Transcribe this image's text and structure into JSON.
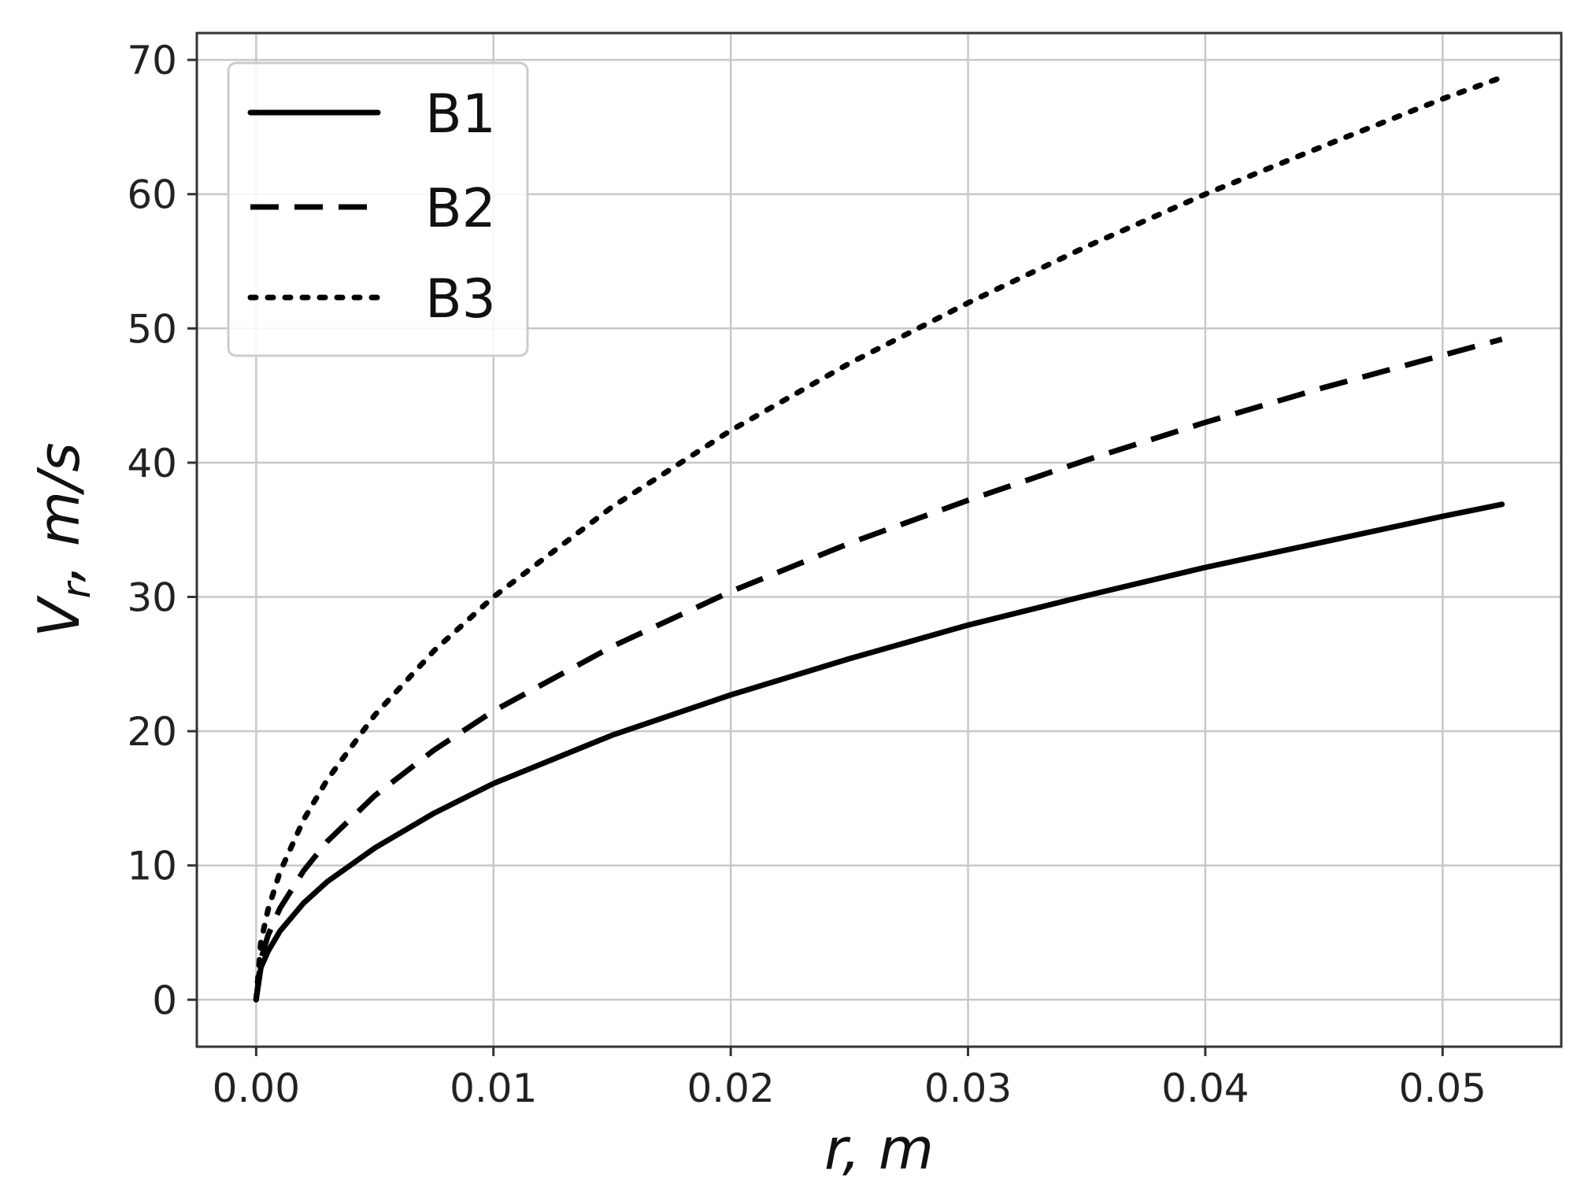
{
  "chart_data": {
    "type": "line",
    "title": "",
    "xlabel": "r, m",
    "ylabel_main": "V",
    "ylabel_sub": "r",
    "ylabel_rest": ", m/s",
    "xlim": [
      -0.0025,
      0.055
    ],
    "ylim": [
      -3.5,
      72
    ],
    "xticks": [
      0.0,
      0.01,
      0.02,
      0.03,
      0.04,
      0.05
    ],
    "xtick_labels": [
      "0.00",
      "0.01",
      "0.02",
      "0.03",
      "0.04",
      "0.05"
    ],
    "yticks": [
      0,
      10,
      20,
      30,
      40,
      50,
      60,
      70
    ],
    "ytick_labels": [
      "0",
      "10",
      "20",
      "30",
      "40",
      "50",
      "60",
      "70"
    ],
    "grid": true,
    "legend_position": "top-left",
    "series": [
      {
        "name": "B1",
        "style": "solid",
        "color": "#000000",
        "x": [
          0.0,
          0.0002,
          0.0005,
          0.001,
          0.002,
          0.003,
          0.005,
          0.0075,
          0.01,
          0.015,
          0.02,
          0.025,
          0.03,
          0.035,
          0.04,
          0.045,
          0.05,
          0.0525
        ],
        "y": [
          0.0,
          2.4,
          3.6,
          5.1,
          7.2,
          8.8,
          11.3,
          13.9,
          16.1,
          19.7,
          22.7,
          25.4,
          27.9,
          30.1,
          32.2,
          34.1,
          36.0,
          36.9
        ]
      },
      {
        "name": "B2",
        "style": "dashed",
        "color": "#000000",
        "x": [
          0.0,
          0.0002,
          0.0005,
          0.001,
          0.002,
          0.003,
          0.005,
          0.0075,
          0.01,
          0.015,
          0.02,
          0.025,
          0.03,
          0.035,
          0.04,
          0.045,
          0.05,
          0.0525
        ],
        "y": [
          0.0,
          3.0,
          4.8,
          6.8,
          9.6,
          11.8,
          15.2,
          18.6,
          21.5,
          26.3,
          30.4,
          34.0,
          37.2,
          40.2,
          43.0,
          45.6,
          48.0,
          49.2
        ]
      },
      {
        "name": "B3",
        "style": "dotted",
        "color": "#000000",
        "x": [
          0.0,
          0.0002,
          0.0005,
          0.001,
          0.002,
          0.003,
          0.005,
          0.0075,
          0.01,
          0.015,
          0.02,
          0.025,
          0.03,
          0.035,
          0.04,
          0.045,
          0.05,
          0.0525
        ],
        "y": [
          0.0,
          4.3,
          6.7,
          9.5,
          13.4,
          16.4,
          21.2,
          26.0,
          30.0,
          36.7,
          42.4,
          47.4,
          51.9,
          56.1,
          60.0,
          63.6,
          67.1,
          68.7
        ]
      }
    ]
  }
}
